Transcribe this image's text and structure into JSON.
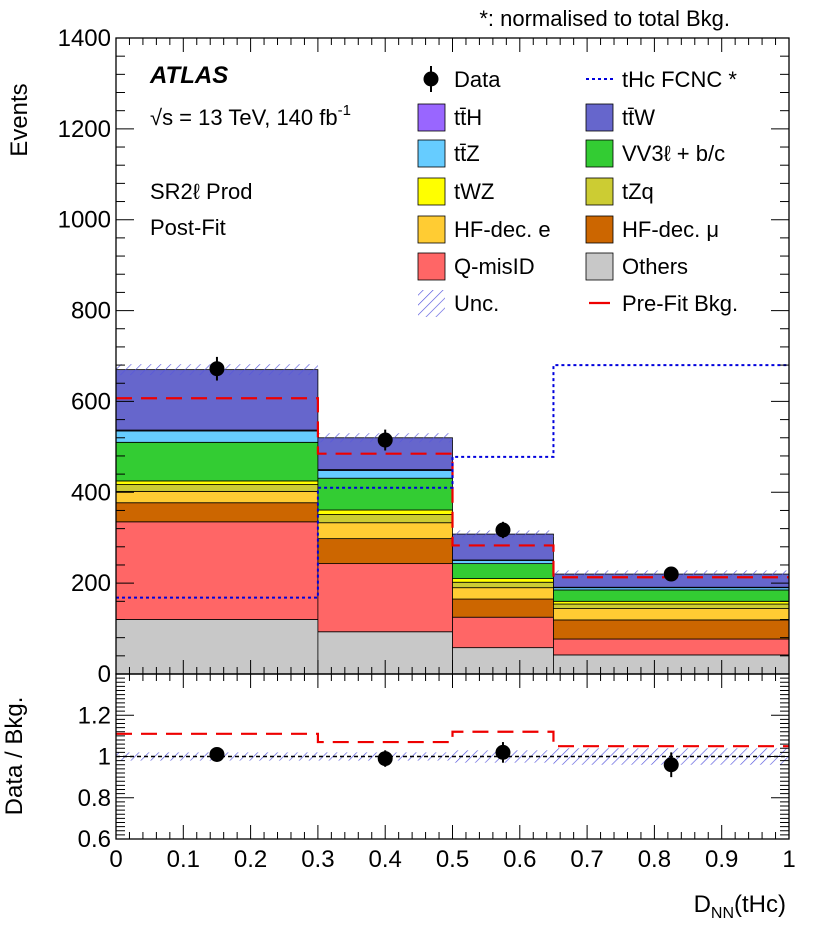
{
  "chart_data": [
    {
      "type": "stacked-histogram",
      "title": "",
      "note": "*: normalised to total Bkg.",
      "experiment": "ATLAS",
      "energy_text": "√s = 13 TeV, 140 fb",
      "energy_sup": "-1",
      "region": "SR2ℓ Prod",
      "fit_state": "Post-Fit",
      "ylabel": "Events",
      "xlabel": "D",
      "xlabel_sub": "NN",
      "xlabel_suffix": "(tHc)",
      "xlim": [
        0,
        1
      ],
      "ylim": [
        0,
        1400
      ],
      "bin_edges": [
        0,
        0.3,
        0.5,
        0.65,
        1.0
      ],
      "yticks": [
        "0",
        "200",
        "400",
        "600",
        "800",
        "1000",
        "1200",
        "1400"
      ],
      "stack_order": [
        "Others",
        "Q-misID",
        "HF-dec. μ",
        "HF-dec. e",
        "tZq",
        "tWZ",
        "VV3ℓ + b/c",
        "tt̄Z",
        "tt̄H",
        "tt̄W"
      ],
      "series": [
        {
          "name": "Others",
          "color": "#c8c8c8",
          "values": [
            120,
            93,
            58,
            42
          ]
        },
        {
          "name": "Q-misID",
          "color": "#ff6666",
          "values": [
            215,
            150,
            67,
            35
          ]
        },
        {
          "name": "HF-dec. μ",
          "color": "#cc6600",
          "values": [
            42,
            55,
            40,
            42
          ]
        },
        {
          "name": "HF-dec. e",
          "color": "#ffcc33",
          "values": [
            25,
            35,
            25,
            25
          ]
        },
        {
          "name": "tZq",
          "color": "#cccc33",
          "values": [
            15,
            18,
            12,
            10
          ]
        },
        {
          "name": "tWZ",
          "color": "#ffff00",
          "values": [
            8,
            10,
            8,
            6
          ]
        },
        {
          "name": "VV3ℓ + b/c",
          "color": "#33cc33",
          "values": [
            85,
            70,
            33,
            25
          ]
        },
        {
          "name": "tt̄Z",
          "color": "#66ccff",
          "values": [
            25,
            17,
            7,
            5
          ]
        },
        {
          "name": "tt̄H",
          "color": "#9966ff",
          "values": [
            2,
            2,
            1,
            1
          ]
        },
        {
          "name": "tt̄W",
          "color": "#6666cc",
          "values": [
            133,
            70,
            57,
            29
          ]
        }
      ],
      "data": {
        "name": "Data",
        "x": [
          0.15,
          0.4,
          0.575,
          0.825
        ],
        "y": [
          672,
          515,
          317,
          220
        ],
        "yerr": [
          26,
          23,
          18,
          15
        ]
      },
      "signal": {
        "name": "tHc FCNC *",
        "color": "#0000dd",
        "values": [
          168,
          410,
          478,
          680
        ]
      },
      "prefit": {
        "name": "Pre-Fit Bkg.",
        "color": "#ee0000",
        "values": [
          607,
          485,
          283,
          213
        ]
      },
      "uncertainty": {
        "name": "Unc.",
        "color": "#5555dd",
        "values": [
          12,
          10,
          8,
          8
        ]
      },
      "legend_left": [
        {
          "label": "Data",
          "kind": "marker"
        },
        {
          "label": "tt̄H",
          "kind": "box",
          "color": "#9966ff"
        },
        {
          "label": "tt̄Z",
          "kind": "box",
          "color": "#66ccff"
        },
        {
          "label": "tWZ",
          "kind": "box",
          "color": "#ffff00"
        },
        {
          "label": "HF-dec. e",
          "kind": "box",
          "color": "#ffcc33"
        },
        {
          "label": "Q-misID",
          "kind": "box",
          "color": "#ff6666"
        },
        {
          "label": "Unc.",
          "kind": "hatch"
        }
      ],
      "legend_right": [
        {
          "label": "tHc FCNC *",
          "kind": "dotline",
          "color": "#0000dd"
        },
        {
          "label": "tt̄W",
          "kind": "box",
          "color": "#6666cc"
        },
        {
          "label": "VV3ℓ + b/c",
          "kind": "box",
          "color": "#33cc33"
        },
        {
          "label": "tZq",
          "kind": "box",
          "color": "#cccc33"
        },
        {
          "label": "HF-dec. μ",
          "kind": "box",
          "color": "#cc6600"
        },
        {
          "label": "Others",
          "kind": "box",
          "color": "#c8c8c8"
        },
        {
          "label": "Pre-Fit Bkg.",
          "kind": "dashline",
          "color": "#ee0000"
        }
      ]
    },
    {
      "type": "ratio",
      "ylabel": "Data / Bkg.",
      "ylim": [
        0.6,
        1.4
      ],
      "yticks": [
        "0.6",
        "0.8",
        "1",
        "1.2"
      ],
      "xticks": [
        "0",
        "0.1",
        "0.2",
        "0.3",
        "0.4",
        "0.5",
        "0.6",
        "0.7",
        "0.8",
        "0.9",
        "1"
      ],
      "data_ratio": {
        "x": [
          0.15,
          0.4,
          0.575,
          0.825
        ],
        "y": [
          1.01,
          0.99,
          1.02,
          0.96
        ],
        "yerr": [
          0.03,
          0.04,
          0.05,
          0.06
        ]
      },
      "prefit_ratio": [
        1.11,
        1.07,
        1.12,
        1.05
      ],
      "unc_ratio": [
        0.02,
        0.02,
        0.03,
        0.04
      ]
    }
  ]
}
